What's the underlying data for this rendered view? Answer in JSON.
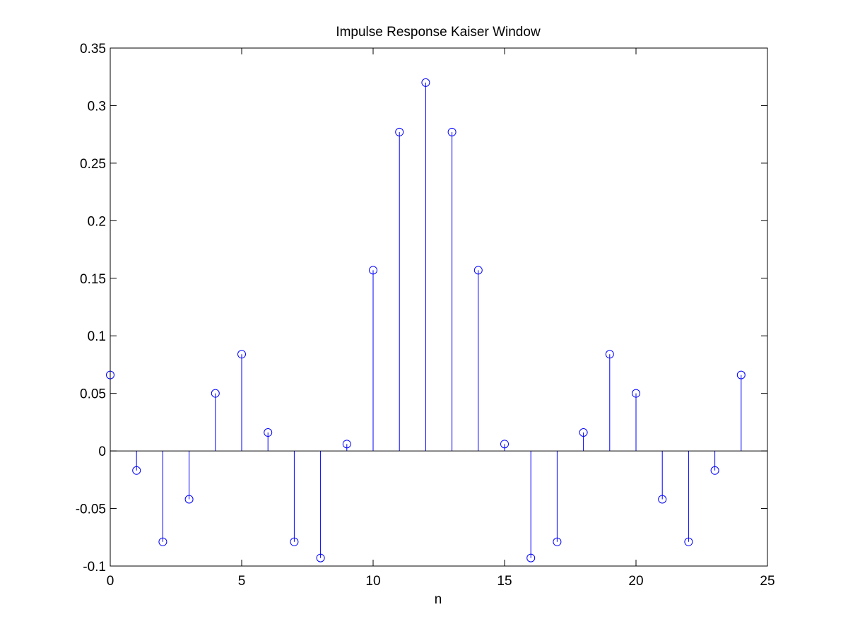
{
  "chart_data": {
    "type": "stem",
    "title": "Impulse Response Kaiser Window",
    "xlabel": "n",
    "ylabel": "",
    "xlim": [
      0,
      25
    ],
    "ylim": [
      -0.1,
      0.35
    ],
    "xticks": [
      0,
      5,
      10,
      15,
      20,
      25
    ],
    "xtick_labels": [
      "0",
      "5",
      "10",
      "15",
      "20",
      "25"
    ],
    "yticks": [
      -0.1,
      -0.05,
      0,
      0.05,
      0.1,
      0.15,
      0.2,
      0.25,
      0.3,
      0.35
    ],
    "ytick_labels": [
      "-0.1",
      "-0.05",
      "0",
      "0.05",
      "0.1",
      "0.15",
      "0.2",
      "0.25",
      "0.3",
      "0.35"
    ],
    "grid": false,
    "legend": "none",
    "color": "#0000ff",
    "marker": "circle",
    "x": [
      0,
      1,
      2,
      3,
      4,
      5,
      6,
      7,
      8,
      9,
      10,
      11,
      12,
      13,
      14,
      15,
      16,
      17,
      18,
      19,
      20,
      21,
      22,
      23,
      24
    ],
    "values": [
      0.066,
      -0.017,
      -0.079,
      -0.042,
      0.05,
      0.084,
      0.016,
      -0.079,
      -0.093,
      0.006,
      0.157,
      0.277,
      0.32,
      0.277,
      0.157,
      0.006,
      -0.093,
      -0.079,
      0.016,
      0.084,
      0.05,
      -0.042,
      -0.079,
      -0.017,
      0.066
    ]
  }
}
